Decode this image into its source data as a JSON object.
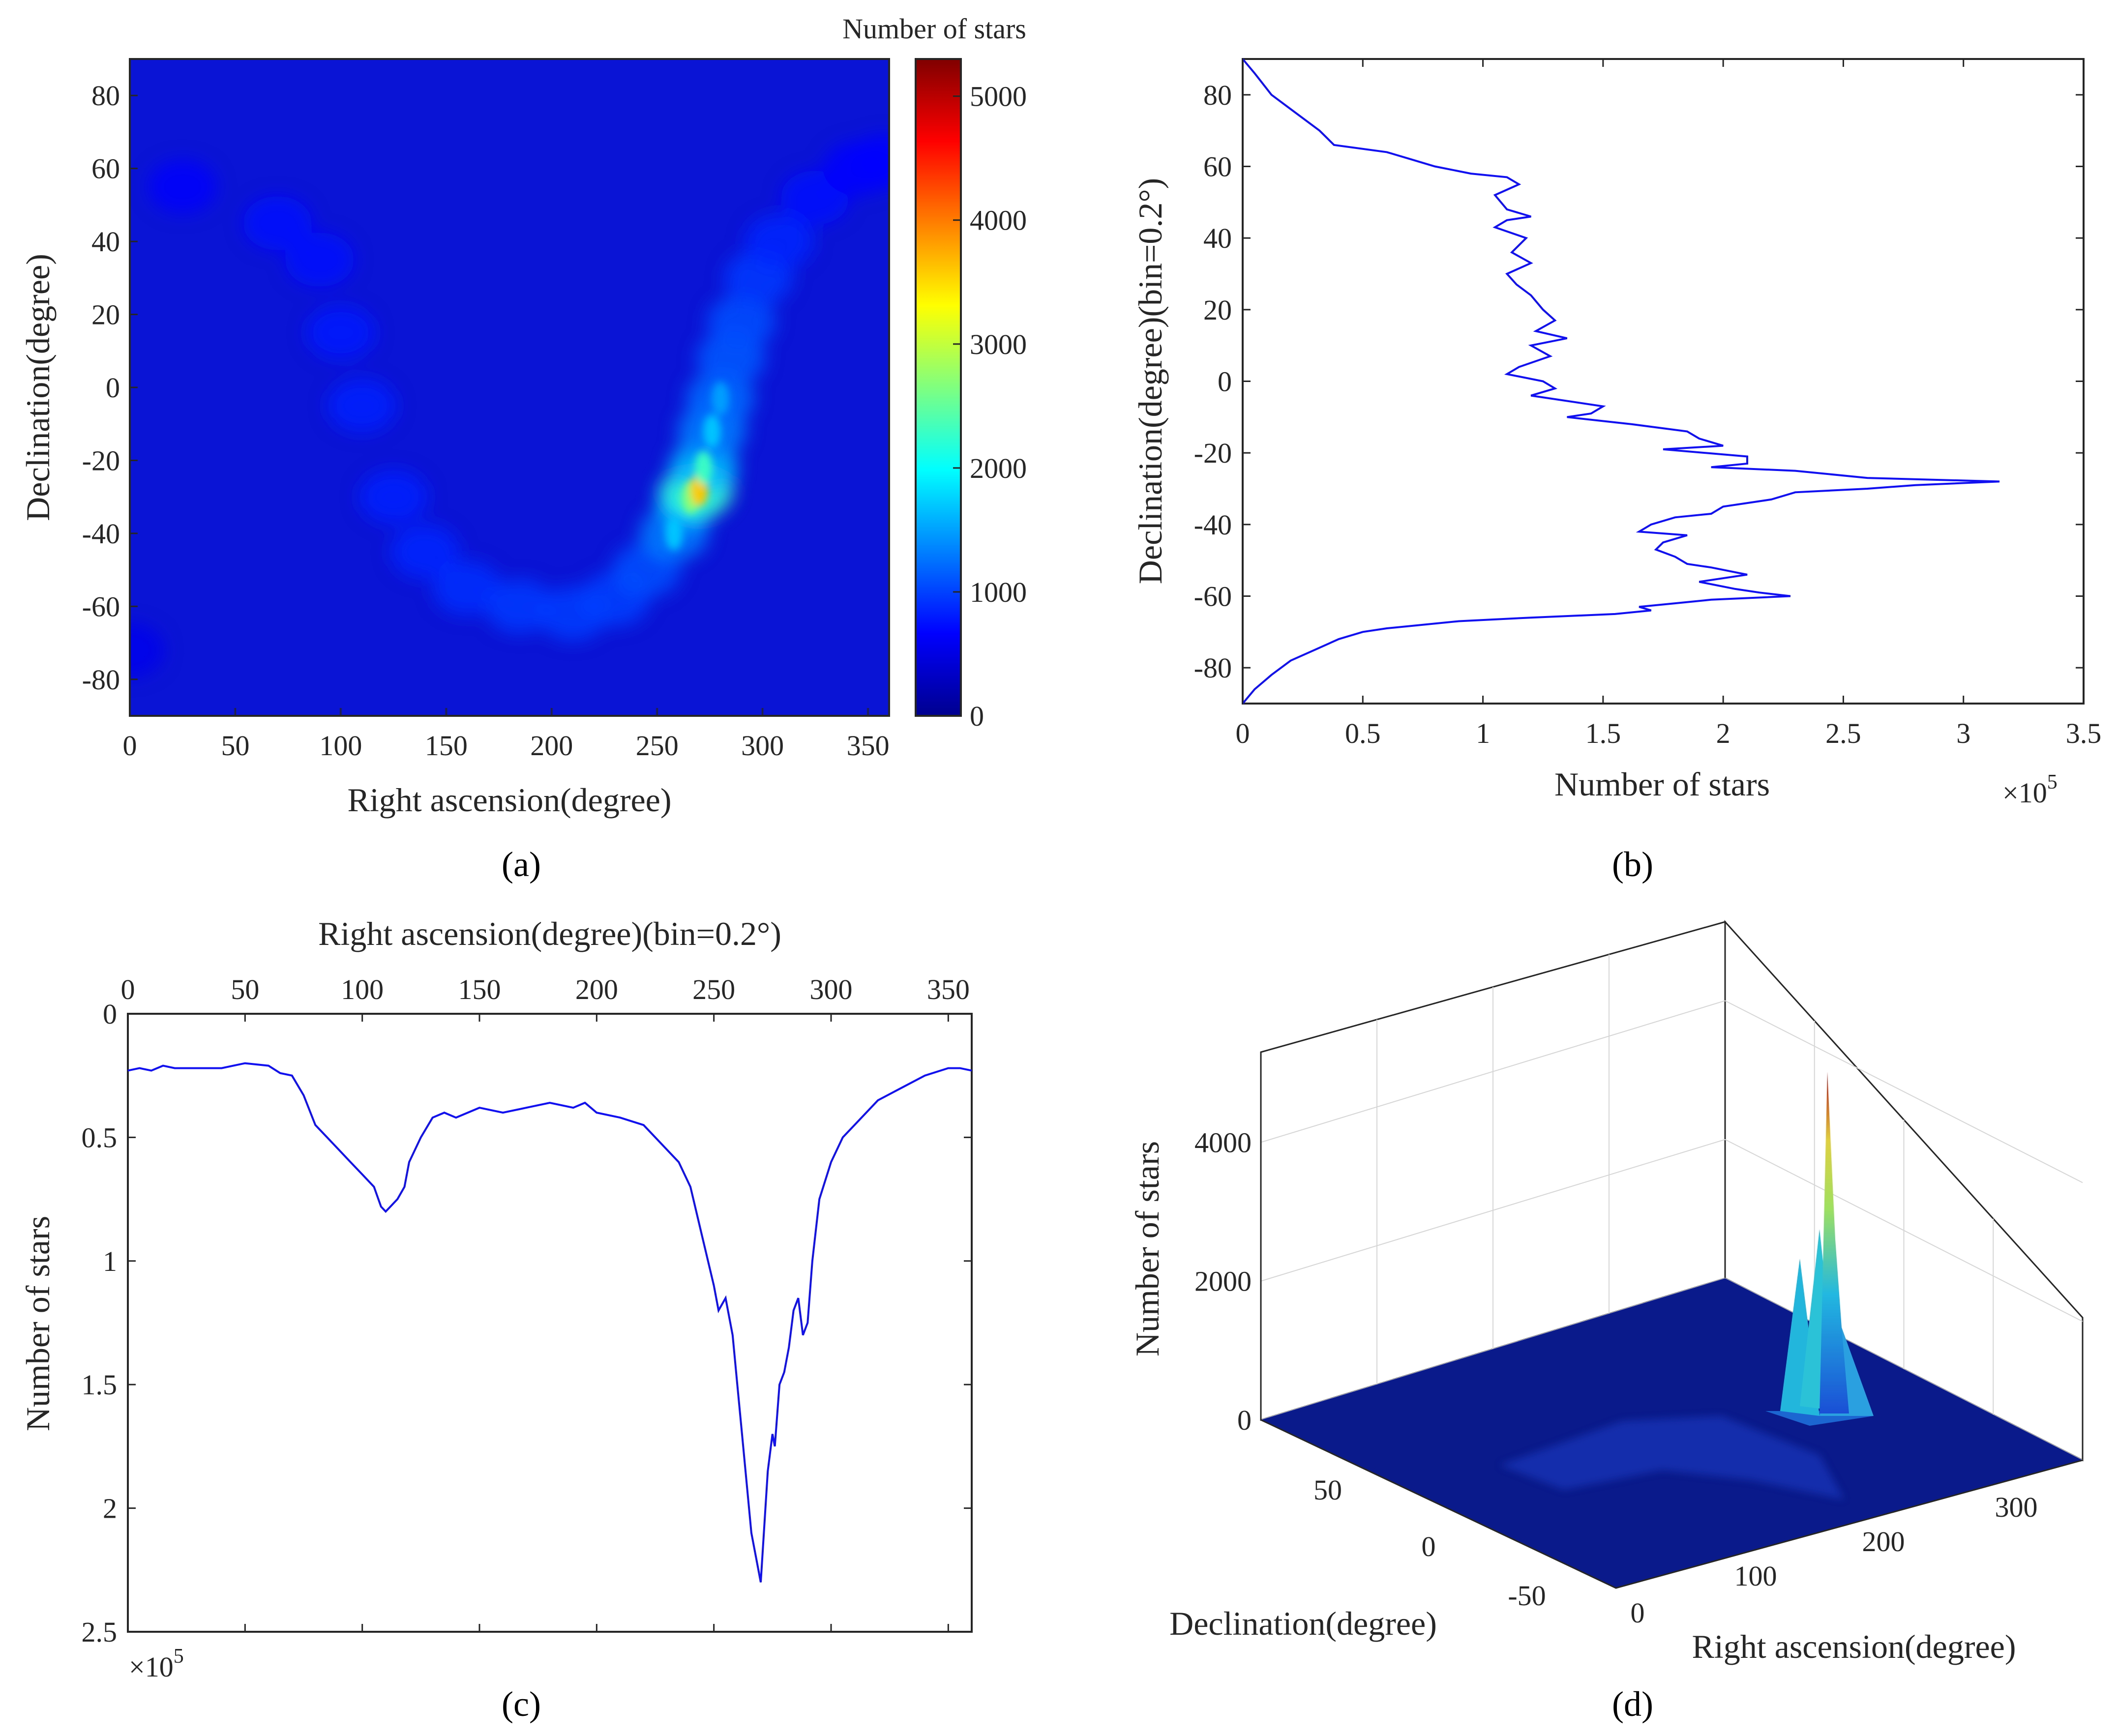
{
  "chart_data": [
    {
      "id": "a",
      "type": "heatmap",
      "panel_label": "(a)",
      "xlabel": "Right ascension(degree)",
      "ylabel": "Declination(degree)",
      "colorbar_label": "Number of stars",
      "xlim": [
        0,
        360
      ],
      "ylim": [
        -90,
        90
      ],
      "clim": [
        0,
        5300
      ],
      "x_ticks": [
        "0",
        "50",
        "100",
        "150",
        "200",
        "250",
        "300",
        "350"
      ],
      "y_ticks": [
        "80",
        "60",
        "40",
        "20",
        "0",
        "-20",
        "-40",
        "-60",
        "-80"
      ],
      "colorbar_ticks": [
        "0",
        "1000",
        "2000",
        "3000",
        "4000",
        "5000"
      ],
      "band": [
        {
          "ra": 0,
          "dec": -72,
          "level": 150
        },
        {
          "ra": 25,
          "dec": 55,
          "level": 350
        },
        {
          "ra": 70,
          "dec": 45,
          "level": 450
        },
        {
          "ra": 90,
          "dec": 35,
          "level": 550
        },
        {
          "ra": 100,
          "dec": 15,
          "level": 650
        },
        {
          "ra": 110,
          "dec": -5,
          "level": 700
        },
        {
          "ra": 125,
          "dec": -30,
          "level": 700
        },
        {
          "ra": 140,
          "dec": -45,
          "level": 750
        },
        {
          "ra": 160,
          "dec": -55,
          "level": 850
        },
        {
          "ra": 185,
          "dec": -60,
          "level": 950
        },
        {
          "ra": 210,
          "dec": -62,
          "level": 1000
        },
        {
          "ra": 230,
          "dec": -58,
          "level": 1050
        },
        {
          "ra": 245,
          "dec": -50,
          "level": 1200
        },
        {
          "ra": 258,
          "dec": -40,
          "level": 1700
        },
        {
          "ra": 266,
          "dec": -30,
          "level": 2700
        },
        {
          "ra": 270,
          "dec": -28,
          "level": 3600
        },
        {
          "ra": 272,
          "dec": -22,
          "level": 2300
        },
        {
          "ra": 276,
          "dec": -12,
          "level": 1700
        },
        {
          "ra": 280,
          "dec": -3,
          "level": 1500
        },
        {
          "ra": 285,
          "dec": 8,
          "level": 1300
        },
        {
          "ra": 290,
          "dec": 18,
          "level": 1200
        },
        {
          "ra": 298,
          "dec": 30,
          "level": 950
        },
        {
          "ra": 308,
          "dec": 40,
          "level": 750
        },
        {
          "ra": 325,
          "dec": 52,
          "level": 550
        },
        {
          "ra": 345,
          "dec": 60,
          "level": 420
        },
        {
          "ra": 358,
          "dec": 62,
          "level": 400
        }
      ]
    },
    {
      "id": "b",
      "type": "line",
      "panel_label": "(b)",
      "xlabel": "Number of stars",
      "ylabel": "Declination(degree)(bin=0.2°)",
      "xlim": [
        0,
        3.5
      ],
      "ylim": [
        -90,
        90
      ],
      "x_multiplier": "×10",
      "x_multiplier_exp": "5",
      "x_ticks": [
        "0",
        "0.5",
        "1",
        "1.5",
        "2",
        "2.5",
        "3",
        "3.5"
      ],
      "y_ticks": [
        "80",
        "60",
        "40",
        "20",
        "0",
        "-20",
        "-40",
        "-60",
        "-80"
      ],
      "series": [
        {
          "name": "declination histogram",
          "dec": [
            90,
            86,
            80,
            76,
            72,
            70,
            68,
            66,
            64,
            62,
            60,
            58,
            57,
            55,
            52,
            48,
            46,
            45,
            43,
            40,
            36,
            33,
            30,
            27,
            24,
            20,
            17,
            14,
            12,
            10,
            7,
            4,
            2,
            0,
            -2,
            -4,
            -7,
            -9,
            -10,
            -12,
            -14,
            -16,
            -18,
            -19,
            -21,
            -23,
            -24,
            -25,
            -27,
            -28,
            -29,
            -30,
            -31,
            -33,
            -35,
            -37,
            -38,
            -40,
            -42,
            -43,
            -45,
            -47,
            -49,
            -51,
            -52,
            -54,
            -56,
            -58,
            -59,
            -60,
            -61,
            -62,
            -63,
            -64,
            -65,
            -66,
            -67,
            -69,
            -70,
            -72,
            -75,
            -78,
            -82,
            -86,
            -90
          ],
          "stars": [
            0,
            0.05,
            0.12,
            0.2,
            0.28,
            0.32,
            0.35,
            0.38,
            0.6,
            0.7,
            0.8,
            0.95,
            1.1,
            1.15,
            1.05,
            1.1,
            1.2,
            1.1,
            1.05,
            1.18,
            1.12,
            1.2,
            1.1,
            1.14,
            1.2,
            1.25,
            1.3,
            1.22,
            1.35,
            1.2,
            1.28,
            1.15,
            1.1,
            1.25,
            1.3,
            1.2,
            1.5,
            1.45,
            1.35,
            1.62,
            1.85,
            1.9,
            2.0,
            1.75,
            2.1,
            2.1,
            1.95,
            2.3,
            2.6,
            3.15,
            2.8,
            2.6,
            2.3,
            2.2,
            2.0,
            1.95,
            1.8,
            1.7,
            1.65,
            1.85,
            1.75,
            1.72,
            1.8,
            1.85,
            1.95,
            2.1,
            1.9,
            2.05,
            2.15,
            2.28,
            1.95,
            1.8,
            1.65,
            1.7,
            1.55,
            1.2,
            0.9,
            0.6,
            0.5,
            0.4,
            0.3,
            0.2,
            0.12,
            0.05,
            0
          ]
        }
      ]
    },
    {
      "id": "c",
      "type": "line",
      "panel_label": "(c)",
      "xlabel": "Right ascension(degree)(bin=0.2°)",
      "ylabel": "Number of stars",
      "xlim": [
        0,
        360
      ],
      "ylim": [
        0,
        2.5
      ],
      "y_reversed": true,
      "y_multiplier": "×10",
      "y_multiplier_exp": "5",
      "x_ticks": [
        "0",
        "50",
        "100",
        "150",
        "200",
        "250",
        "300",
        "350"
      ],
      "y_ticks": [
        "0",
        "0.5",
        "1",
        "1.5",
        "2",
        "2.5"
      ],
      "series": [
        {
          "name": "right ascension histogram",
          "ra": [
            0,
            5,
            10,
            15,
            20,
            30,
            40,
            45,
            50,
            60,
            65,
            70,
            75,
            80,
            85,
            90,
            95,
            100,
            105,
            108,
            110,
            112,
            115,
            118,
            120,
            125,
            130,
            135,
            140,
            150,
            160,
            170,
            180,
            190,
            195,
            200,
            210,
            220,
            225,
            230,
            235,
            240,
            245,
            250,
            252,
            255,
            258,
            260,
            262,
            264,
            266,
            268,
            270,
            272,
            273,
            275,
            276,
            278,
            280,
            282,
            284,
            286,
            288,
            290,
            292,
            295,
            300,
            305,
            310,
            320,
            330,
            340,
            350,
            355,
            360
          ],
          "stars": [
            0.23,
            0.22,
            0.23,
            0.21,
            0.22,
            0.22,
            0.22,
            0.21,
            0.2,
            0.21,
            0.24,
            0.25,
            0.33,
            0.45,
            0.5,
            0.55,
            0.6,
            0.65,
            0.7,
            0.78,
            0.8,
            0.78,
            0.75,
            0.7,
            0.6,
            0.5,
            0.42,
            0.4,
            0.42,
            0.38,
            0.4,
            0.38,
            0.36,
            0.38,
            0.36,
            0.4,
            0.42,
            0.45,
            0.5,
            0.55,
            0.6,
            0.7,
            0.9,
            1.1,
            1.2,
            1.15,
            1.3,
            1.5,
            1.7,
            1.9,
            2.1,
            2.2,
            2.3,
            2.0,
            1.85,
            1.7,
            1.75,
            1.5,
            1.45,
            1.35,
            1.2,
            1.15,
            1.3,
            1.25,
            1.0,
            0.75,
            0.6,
            0.5,
            0.45,
            0.35,
            0.3,
            0.25,
            0.22,
            0.22,
            0.23
          ]
        }
      ]
    },
    {
      "id": "d",
      "type": "surface3d",
      "panel_label": "(d)",
      "xlabel": "Right ascension(degree)",
      "ylabel": "Declination(degree)",
      "zlabel": "Number of stars",
      "z_ticks": [
        "0",
        "2000",
        "4000"
      ],
      "dec_ticks": [
        "50",
        "0",
        "-50"
      ],
      "ra_ticks": [
        "0",
        "100",
        "200",
        "300"
      ],
      "zlim": [
        0,
        5300
      ],
      "peak": {
        "ra": 270,
        "dec": -30,
        "value": 5200
      }
    }
  ]
}
